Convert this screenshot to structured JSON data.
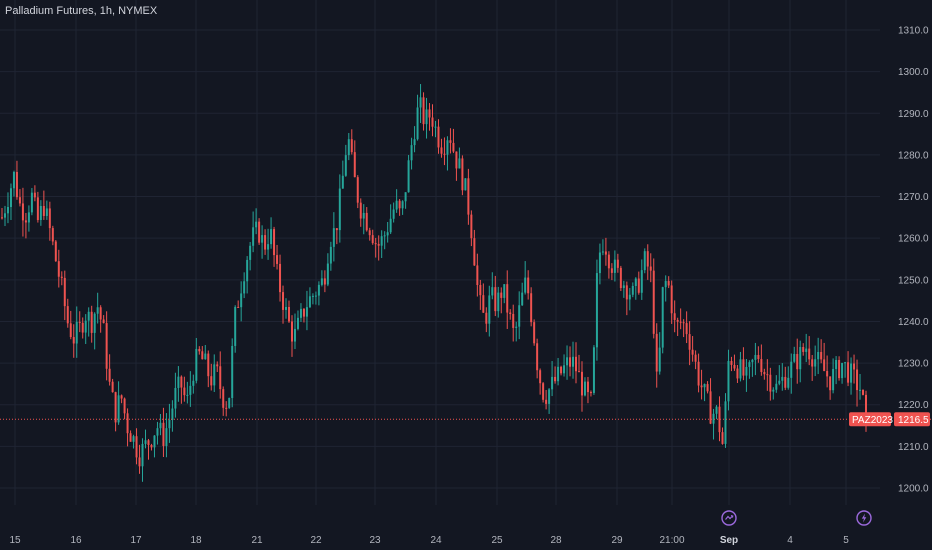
{
  "header": {
    "title": "Palladium Futures, 1h, NYMEX"
  },
  "colors": {
    "background": "#131722",
    "grid": "#1f2433",
    "up": "#26a69a",
    "down": "#ef5350",
    "axis_text": "#b2b5be",
    "event_icon": "#9c6ade"
  },
  "chart_data": {
    "type": "candlestick",
    "title": "Palladium Futures, 1h, NYMEX",
    "symbol": "PAZ2023",
    "last_price": 1216.5,
    "last_price_label": "1216.5",
    "ylim": [
      1195,
      1315
    ],
    "grid": true,
    "y_ticks": [
      "1200.0",
      "1210.0",
      "1220.0",
      "1230.0",
      "1240.0",
      "1250.0",
      "1260.0",
      "1270.0",
      "1280.0",
      "1290.0",
      "1300.0",
      "1310.0"
    ],
    "x_ticks": [
      {
        "label": "15",
        "bold": false
      },
      {
        "label": "16",
        "bold": false
      },
      {
        "label": "17",
        "bold": false
      },
      {
        "label": "18",
        "bold": false
      },
      {
        "label": "21",
        "bold": false
      },
      {
        "label": "22",
        "bold": false
      },
      {
        "label": "23",
        "bold": false
      },
      {
        "label": "24",
        "bold": false
      },
      {
        "label": "25",
        "bold": false
      },
      {
        "label": "28",
        "bold": false
      },
      {
        "label": "29",
        "bold": false
      },
      {
        "label": "21:00",
        "bold": false
      },
      {
        "label": "Sep",
        "bold": true
      },
      {
        "label": "4",
        "bold": false
      },
      {
        "label": "5",
        "bold": false
      }
    ],
    "close_path": [
      1265,
      1270,
      1275,
      1268,
      1266,
      1270,
      1264,
      1268,
      1262,
      1255,
      1248,
      1240,
      1236,
      1238,
      1242,
      1240,
      1244,
      1238,
      1225,
      1218,
      1222,
      1215,
      1212,
      1208,
      1210,
      1212,
      1215,
      1212,
      1216,
      1222,
      1225,
      1220,
      1228,
      1232,
      1230,
      1226,
      1228,
      1222,
      1220,
      1240,
      1248,
      1255,
      1260,
      1262,
      1258,
      1262,
      1252,
      1246,
      1240,
      1236,
      1240,
      1244,
      1246,
      1248,
      1250,
      1260,
      1262,
      1272,
      1285,
      1275,
      1268,
      1265,
      1262,
      1258,
      1260,
      1264,
      1268,
      1265,
      1275,
      1285,
      1292,
      1288,
      1290,
      1285,
      1282,
      1286,
      1280,
      1276,
      1270,
      1260,
      1245,
      1240,
      1246,
      1244,
      1248,
      1242,
      1236,
      1244,
      1250,
      1240,
      1228,
      1222,
      1224,
      1226,
      1228,
      1230,
      1230,
      1226,
      1222,
      1220,
      1255,
      1260,
      1255,
      1252,
      1250,
      1248,
      1246,
      1250,
      1255,
      1250,
      1222,
      1250,
      1248,
      1238,
      1240,
      1238,
      1232,
      1226,
      1222,
      1218,
      1218,
      1210,
      1232,
      1230,
      1228,
      1226,
      1230,
      1232,
      1228,
      1226,
      1224,
      1226,
      1228,
      1230,
      1232,
      1234,
      1232,
      1230,
      1228,
      1226,
      1228,
      1230,
      1228,
      1226,
      1224,
      1216.5
    ]
  }
}
